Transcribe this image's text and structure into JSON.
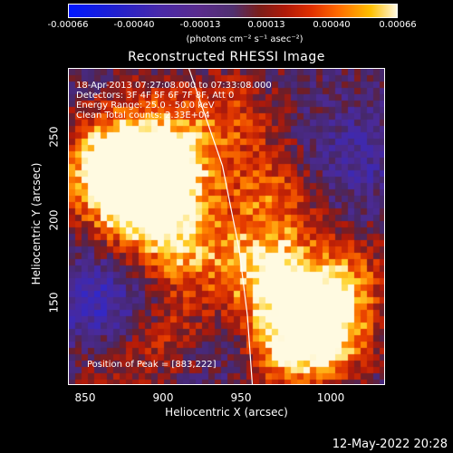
{
  "colorbar": {
    "ticks": [
      "-0.00066",
      "-0.00040",
      "-0.00013",
      "0.00013",
      "0.00040",
      "0.00066"
    ],
    "unit": "(photons cm⁻² s⁻¹ asec⁻²)"
  },
  "chart_data": {
    "type": "heatmap",
    "title": "Reconstructed RHESSI Image",
    "xlabel": "Heliocentric X (arcsec)",
    "ylabel": "Heliocentric Y (arcsec)",
    "xlim": [
      843,
      1033
    ],
    "ylim": [
      98,
      288
    ],
    "xticks": [
      "850",
      "900",
      "950",
      "1000"
    ],
    "yticks": [
      "150",
      "200",
      "250"
    ],
    "color_range": [
      -0.00066,
      0.00066
    ],
    "colormap": "blue-purple-red-yellow-white",
    "annotations": {
      "time": "18-Apr-2013 07:27:08.000 to 07:33:08.000",
      "detectors": "Detectors: 3F 4F 5F 6F 7F 8F, Att 0",
      "energy": "Energy Range: 25.0 - 50.0 keV",
      "clean": "Clean    Total counts: 2.33E+04",
      "peak": "Position of Peak = [883,222]"
    },
    "peak": [
      883,
      222
    ],
    "limb_line": [
      [
        915,
        288
      ],
      [
        935,
        230
      ],
      [
        945,
        180
      ],
      [
        950,
        140
      ],
      [
        953,
        98
      ]
    ],
    "sources": [
      {
        "x": 883,
        "y": 222,
        "intensity": 1.0,
        "size": 14
      },
      {
        "x": 870,
        "y": 230,
        "intensity": 0.7,
        "size": 10
      },
      {
        "x": 905,
        "y": 240,
        "intensity": 0.6,
        "size": 14
      },
      {
        "x": 895,
        "y": 200,
        "intensity": 0.55,
        "size": 12
      },
      {
        "x": 915,
        "y": 175,
        "intensity": 0.45,
        "size": 10
      },
      {
        "x": 985,
        "y": 145,
        "intensity": 0.9,
        "size": 13
      },
      {
        "x": 960,
        "y": 170,
        "intensity": 0.75,
        "size": 12
      },
      {
        "x": 1000,
        "y": 130,
        "intensity": 0.6,
        "size": 10
      },
      {
        "x": 975,
        "y": 115,
        "intensity": 0.55,
        "size": 10
      },
      {
        "x": 965,
        "y": 215,
        "intensity": 0.5,
        "size": 10
      },
      {
        "x": 945,
        "y": 260,
        "intensity": 0.35,
        "size": 10
      },
      {
        "x": 905,
        "y": 130,
        "intensity": 0.35,
        "size": 10
      },
      {
        "x": 870,
        "y": 105,
        "intensity": 0.3,
        "size": 10
      },
      {
        "x": 1015,
        "y": 165,
        "intensity": 0.35,
        "size": 9
      },
      {
        "x": 860,
        "y": 150,
        "intensity": -0.5,
        "size": 12
      },
      {
        "x": 1015,
        "y": 235,
        "intensity": -0.3,
        "size": 12
      },
      {
        "x": 935,
        "y": 120,
        "intensity": -0.2,
        "size": 9
      }
    ]
  },
  "footer": {
    "date": "12-May-2022 20:28"
  }
}
